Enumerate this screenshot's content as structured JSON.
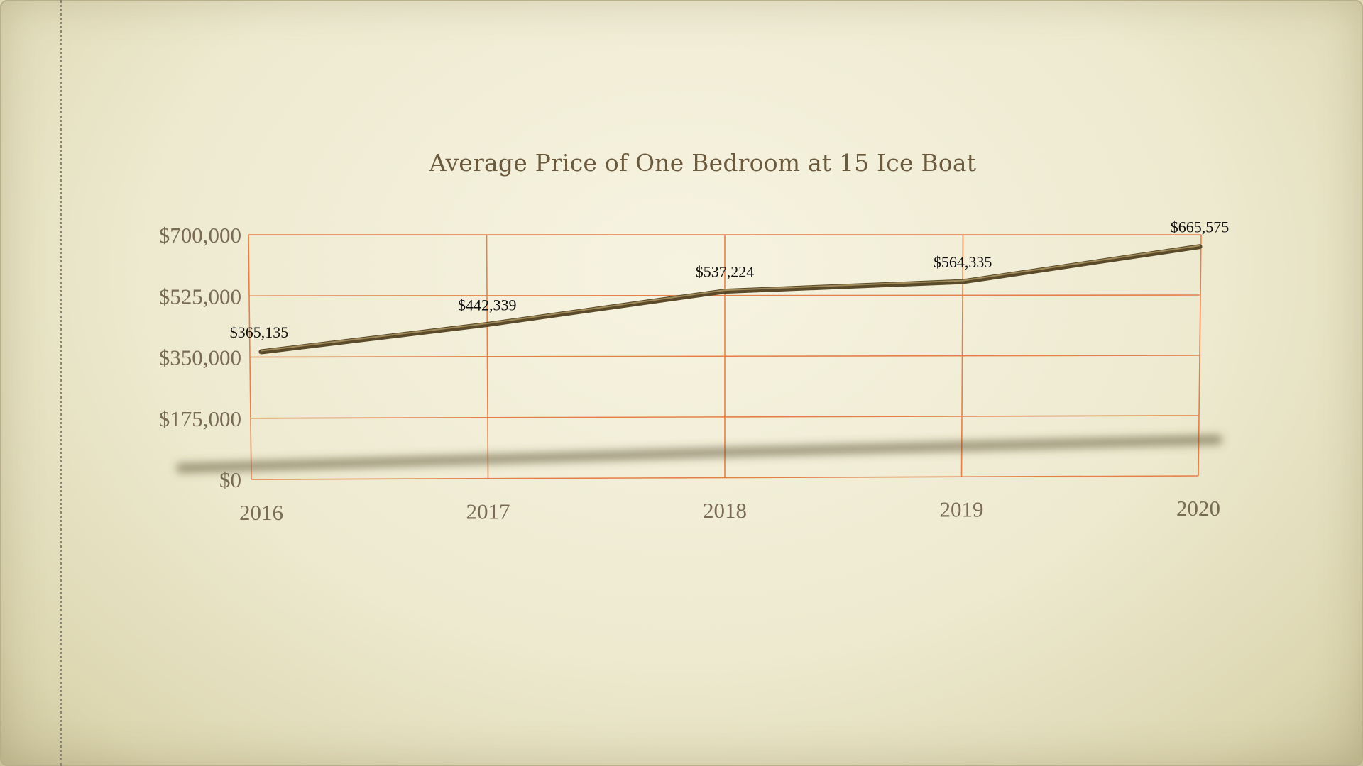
{
  "chart_data": {
    "type": "line",
    "title": "Average Price of One Bedroom at 15 Ice Boat",
    "categories": [
      "2016",
      "2017",
      "2018",
      "2019",
      "2020"
    ],
    "series": [
      {
        "values": [
          365135,
          442339,
          537224,
          564335,
          665575
        ],
        "data_labels": [
          "$365,135",
          "$442,339",
          "$537,224",
          "$564,335",
          "$665,575"
        ]
      }
    ],
    "y_ticks": [
      {
        "value": 0,
        "label": "$0"
      },
      {
        "value": 175000,
        "label": "$175,000"
      },
      {
        "value": 350000,
        "label": "$350,000"
      },
      {
        "value": 525000,
        "label": "$525,000"
      },
      {
        "value": 700000,
        "label": "$700,000"
      }
    ],
    "ylim": [
      0,
      700000
    ],
    "grid": true,
    "legend": "none",
    "colors": {
      "line": "#5a4a2a",
      "line_highlight": "#a08a5a",
      "grid": "#e4814a",
      "tick_text": "#7a6b55",
      "title_text": "#6b5a3e"
    }
  }
}
